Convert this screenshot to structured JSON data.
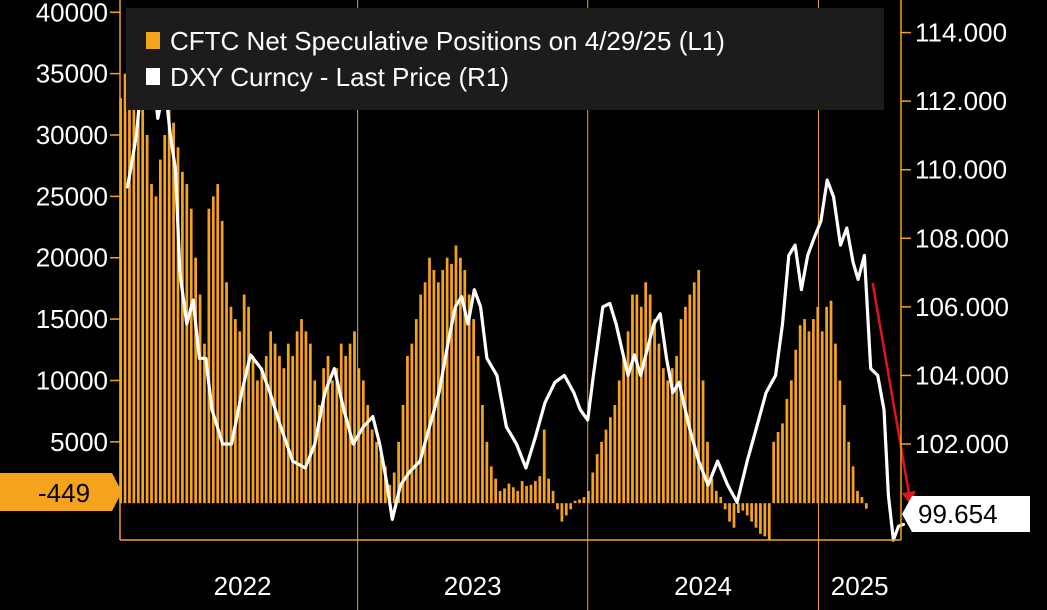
{
  "colors": {
    "background": "#000000",
    "bars": "#f5a21c",
    "line": "#ffffff",
    "arrow": "#e0141e",
    "legend_bg": "#1c1c1c",
    "axis": "#f5a21c"
  },
  "chart_data": {
    "type": "bar+line",
    "legend": [
      {
        "label": "CFTC Net Speculative Positions on 4/29/25 (L1)",
        "color": "#f5a21c"
      },
      {
        "label": "DXY Curncy - Last Price (R1)",
        "color": "#ffffff"
      }
    ],
    "x_axis": {
      "start": "2021-12-20",
      "end": "2025-05-12",
      "year_labels": [
        "2022",
        "2023",
        "2024",
        "2025"
      ]
    },
    "left_axis": {
      "range": [
        -3000,
        41000
      ],
      "ticks": [
        5000,
        10000,
        15000,
        20000,
        25000,
        30000,
        35000,
        40000
      ],
      "tick_labels": [
        "5000",
        "10000",
        "15000",
        "20000",
        "25000",
        "30000",
        "35000",
        "40000"
      ],
      "last_value_label": "-449"
    },
    "right_axis": {
      "range": [
        99.2,
        114.95
      ],
      "ticks": [
        102,
        104,
        106,
        108,
        110,
        112,
        114
      ],
      "tick_labels": [
        "102.000",
        "104.000",
        "106.000",
        "108.000",
        "110.000",
        "112.000",
        "114.000"
      ],
      "last_value_label": "99.654"
    },
    "series": [
      {
        "name": "CFTC Net Speculative Positions on 4/29/25 (L1)",
        "type": "bar",
        "axis": "left",
        "frequency": "weekly",
        "start": "2021-12-21",
        "values": [
          33000,
          35000,
          36000,
          36000,
          35000,
          33000,
          30000,
          26000,
          25000,
          28000,
          30000,
          33000,
          31000,
          29000,
          27000,
          26000,
          24000,
          20000,
          17000,
          13000,
          24000,
          25000,
          26000,
          23000,
          18000,
          16000,
          15000,
          14000,
          17000,
          16000,
          12000,
          10000,
          11000,
          12000,
          14000,
          13000,
          12000,
          11000,
          13000,
          12000,
          14000,
          15000,
          14000,
          13000,
          10000,
          8000,
          11000,
          12000,
          10000,
          11000,
          13000,
          12000,
          13000,
          14000,
          11000,
          10000,
          8000,
          6000,
          5000,
          4000,
          3000,
          1500,
          2500,
          5000,
          8000,
          12000,
          13000,
          15000,
          17000,
          18000,
          20000,
          19000,
          18000,
          19000,
          20000,
          19500,
          21000,
          20000,
          19000,
          17000,
          15000,
          12000,
          8000,
          5000,
          3000,
          2000,
          1000,
          1200,
          1600,
          1300,
          1000,
          1800,
          1400,
          1500,
          1800,
          2200,
          6000,
          2000,
          1000,
          -500,
          -1500,
          -1000,
          -500,
          200,
          300,
          500,
          1000,
          2500,
          4000,
          5000,
          6000,
          7000,
          8000,
          10000,
          12000,
          14000,
          17000,
          17000,
          16000,
          18000,
          17000,
          15000,
          13000,
          11000,
          10000,
          11000,
          12000,
          15000,
          16000,
          17000,
          18000,
          19000,
          10000,
          5000,
          2000,
          1000,
          500,
          -500,
          -1500,
          -2000,
          -800,
          -600,
          -1000,
          -1500,
          -2000,
          -2500,
          -2700,
          -3000,
          5000,
          5800,
          6500,
          8500,
          10000,
          12500,
          14500,
          15000,
          14000,
          15000,
          16000,
          14000,
          16000,
          16500,
          13000,
          10000,
          8000,
          5000,
          3000,
          1000,
          500,
          -449
        ]
      },
      {
        "name": "DXY Curncy - Last Price (R1)",
        "type": "line",
        "axis": "right",
        "points": [
          [
            "2022-01-01",
            109.5
          ],
          [
            "2022-01-15",
            111.0
          ],
          [
            "2022-01-25",
            113.0
          ],
          [
            "2022-02-01",
            112.0
          ],
          [
            "2022-02-10",
            113.0
          ],
          [
            "2022-02-18",
            111.5
          ],
          [
            "2022-03-01",
            112.5
          ],
          [
            "2022-03-10",
            111.0
          ],
          [
            "2022-03-18",
            110.0
          ],
          [
            "2022-03-25",
            107.0
          ],
          [
            "2022-04-05",
            105.5
          ],
          [
            "2022-04-15",
            106.2
          ],
          [
            "2022-04-25",
            104.5
          ],
          [
            "2022-05-05",
            104.5
          ],
          [
            "2022-05-15",
            103.0
          ],
          [
            "2022-06-01",
            102.0
          ],
          [
            "2022-06-15",
            102.0
          ],
          [
            "2022-07-01",
            103.5
          ],
          [
            "2022-07-15",
            104.6
          ],
          [
            "2022-08-01",
            104.2
          ],
          [
            "2022-08-15",
            103.5
          ],
          [
            "2022-09-01",
            102.5
          ],
          [
            "2022-09-20",
            101.5
          ],
          [
            "2022-10-10",
            101.3
          ],
          [
            "2022-10-25",
            102.0
          ],
          [
            "2022-11-10",
            103.5
          ],
          [
            "2022-11-25",
            104.2
          ],
          [
            "2022-12-10",
            103.0
          ],
          [
            "2022-12-25",
            102.0
          ],
          [
            "2023-01-10",
            102.5
          ],
          [
            "2023-01-25",
            102.8
          ],
          [
            "2023-02-05",
            102.0
          ],
          [
            "2023-02-15",
            101.0
          ],
          [
            "2023-02-25",
            99.8
          ],
          [
            "2023-03-10",
            100.8
          ],
          [
            "2023-03-25",
            101.2
          ],
          [
            "2023-04-10",
            101.5
          ],
          [
            "2023-04-25",
            102.5
          ],
          [
            "2023-05-10",
            103.5
          ],
          [
            "2023-05-25",
            105.0
          ],
          [
            "2023-06-05",
            106.0
          ],
          [
            "2023-06-15",
            106.3
          ],
          [
            "2023-06-25",
            105.5
          ],
          [
            "2023-07-05",
            106.5
          ],
          [
            "2023-07-15",
            106.0
          ],
          [
            "2023-07-25",
            104.5
          ],
          [
            "2023-08-10",
            104.0
          ],
          [
            "2023-08-25",
            102.5
          ],
          [
            "2023-09-10",
            102.0
          ],
          [
            "2023-09-25",
            101.3
          ],
          [
            "2023-10-10",
            102.2
          ],
          [
            "2023-10-25",
            103.2
          ],
          [
            "2023-11-10",
            103.8
          ],
          [
            "2023-11-25",
            104.0
          ],
          [
            "2023-12-10",
            103.5
          ],
          [
            "2023-12-20",
            103.0
          ],
          [
            "2024-01-01",
            102.7
          ],
          [
            "2024-01-10",
            104.0
          ],
          [
            "2024-01-25",
            106.0
          ],
          [
            "2024-02-05",
            106.1
          ],
          [
            "2024-02-15",
            105.5
          ],
          [
            "2024-02-25",
            104.7
          ],
          [
            "2024-03-05",
            104.0
          ],
          [
            "2024-03-15",
            104.6
          ],
          [
            "2024-03-25",
            104.0
          ],
          [
            "2024-04-05",
            104.8
          ],
          [
            "2024-04-15",
            105.5
          ],
          [
            "2024-04-25",
            105.8
          ],
          [
            "2024-05-05",
            104.5
          ],
          [
            "2024-05-15",
            103.5
          ],
          [
            "2024-05-25",
            103.8
          ],
          [
            "2024-06-10",
            102.5
          ],
          [
            "2024-06-25",
            101.5
          ],
          [
            "2024-07-10",
            100.8
          ],
          [
            "2024-07-25",
            101.5
          ],
          [
            "2024-08-10",
            100.8
          ],
          [
            "2024-08-25",
            100.3
          ],
          [
            "2024-09-10",
            101.5
          ],
          [
            "2024-09-25",
            102.5
          ],
          [
            "2024-10-10",
            103.5
          ],
          [
            "2024-10-25",
            104.0
          ],
          [
            "2024-11-05",
            105.5
          ],
          [
            "2024-11-15",
            107.5
          ],
          [
            "2024-11-25",
            107.8
          ],
          [
            "2024-12-05",
            106.5
          ],
          [
            "2024-12-15",
            107.5
          ],
          [
            "2024-12-25",
            108.0
          ],
          [
            "2025-01-05",
            108.5
          ],
          [
            "2025-01-15",
            109.7
          ],
          [
            "2025-01-25",
            109.2
          ],
          [
            "2025-02-05",
            107.8
          ],
          [
            "2025-02-15",
            108.3
          ],
          [
            "2025-02-25",
            107.3
          ],
          [
            "2025-03-05",
            106.8
          ],
          [
            "2025-03-15",
            107.5
          ],
          [
            "2025-03-25",
            104.2
          ],
          [
            "2025-04-05",
            104.0
          ],
          [
            "2025-04-15",
            103.0
          ],
          [
            "2025-04-22",
            100.5
          ],
          [
            "2025-04-30",
            99.2
          ],
          [
            "2025-05-08",
            99.6
          ],
          [
            "2025-05-16",
            99.654
          ]
        ]
      }
    ],
    "annotations": [
      {
        "type": "arrow",
        "color": "#e0141e",
        "from": [
          "2025-03-28",
          106.7
        ],
        "to": [
          "2025-05-28",
          100.2
        ]
      }
    ],
    "legend_position": "top-left",
    "grid": false
  }
}
